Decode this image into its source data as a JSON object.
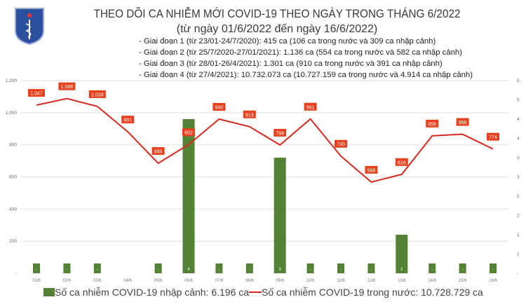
{
  "header": {
    "title": "THEO DÕI CA NHIỄM MỚI COVID-19 THEO NGÀY TRONG THÁNG 6/2022",
    "subtitle": "(từ ngày 01/6/2022 đến ngày 16/6/2022)",
    "logo_text": "BỘ Y TẾ",
    "phases": [
      "- Giai đoạn 1 (từ 23/01-24/7/2020): 415 ca (106 ca trong nước và 309 ca nhập cảnh)",
      "- Giai đoạn 2 (từ 25/7/2020-27/01/2021): 1.136 ca (554 ca trong nước và 582 ca nhập cảnh)",
      "- Giai đoạn 3 (từ 28/01-26/4/2021): 1.301 ca (910 ca trong nước và 391 ca nhập cảnh)",
      "- Giai đoạn 4 (từ 27/4/2021): 10.732.073 ca (10.727.159 ca trong nước và 4.914 ca nhập cảnh)"
    ]
  },
  "chart_data": {
    "type": "bar+line",
    "categories": [
      "01/6",
      "02/6",
      "03/6",
      "04/6",
      "05/6",
      "06/6",
      "07/6",
      "08/6",
      "09/6",
      "10/6",
      "11/6",
      "12/6",
      "13/6",
      "14/6",
      "15/6",
      "16/6"
    ],
    "series": [
      {
        "name": "Số ca nhiễm COVID-19 nhập cảnh: 6.196 ca",
        "type": "bar",
        "axis": "right",
        "color": "#548235",
        "values": [
          0,
          0,
          0,
          null,
          0,
          4,
          0,
          0,
          3,
          0,
          0,
          0,
          1,
          0,
          0,
          0
        ],
        "labels": [
          "-",
          "-",
          "-",
          "",
          "-",
          "4",
          "-",
          "-",
          "3",
          "-",
          "-",
          "-",
          "1",
          "-",
          "-",
          "-"
        ]
      },
      {
        "name": "Số ca nhiễm COVID-19 trong nước: 10.728.729 ca",
        "type": "line",
        "axis": "left",
        "color": "#d9271e",
        "values": [
          1047,
          1088,
          1039,
          881,
          685,
          802,
          960,
          913,
          799,
          961,
          730,
          568,
          616,
          856,
          866,
          774
        ],
        "labels": [
          "1.047",
          "1.088",
          "1.039",
          "881",
          "685",
          "802",
          "960",
          "913",
          "799",
          "961",
          "730",
          "568",
          "616",
          "856",
          "866",
          "774"
        ]
      }
    ],
    "y_left": {
      "ylim": [
        0,
        1200
      ],
      "ticks": [
        0,
        200,
        400,
        600,
        800,
        1000,
        1200
      ],
      "tick_labels": [
        "-",
        "200",
        "400",
        "600",
        "800",
        "1.000",
        "1.200"
      ]
    },
    "y_right": {
      "ylim": [
        0,
        5
      ],
      "ticks": [
        0,
        0.5,
        1,
        1.5,
        2,
        2.5,
        3,
        3.5,
        4,
        4.5,
        5
      ],
      "tick_labels": [
        "-",
        "1",
        "1",
        "2",
        "2",
        "3",
        "3",
        "4",
        "4",
        "5",
        "5"
      ]
    },
    "grid": true,
    "legend": "bottom"
  }
}
